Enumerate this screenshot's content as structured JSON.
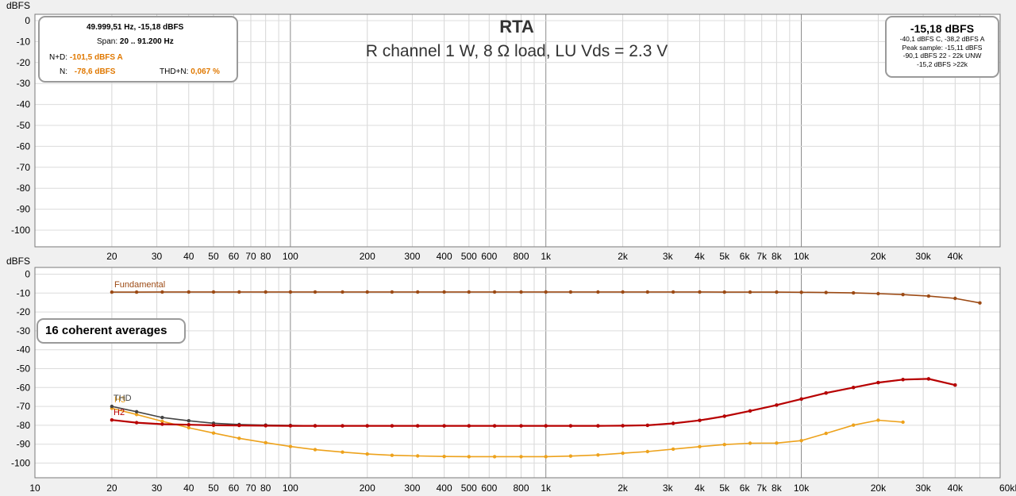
{
  "title": "RTA",
  "subtitle": "R channel 1 W, 8 Ω load, LU Vds = 2.3 V",
  "top_panel": {
    "y_unit": "dBFS",
    "y_ticks": [
      "0",
      "-10",
      "-20",
      "-30",
      "-40",
      "-50",
      "-60",
      "-70",
      "-80",
      "-90",
      "-100"
    ],
    "x_tick_labels": [
      "20",
      "30",
      "40",
      "50",
      "60",
      "70",
      "80",
      "100",
      "200",
      "300",
      "400",
      "500",
      "600",
      "800",
      "1k",
      "2k",
      "3k",
      "4k",
      "5k",
      "6k",
      "7k",
      "8k",
      "10k",
      "20k",
      "30k",
      "40k"
    ]
  },
  "info_box": {
    "cursor": "49.999,51 Hz, -15,18 dBFS",
    "span_label": "Span:",
    "span_value": "20 .. 91.200 Hz",
    "nd_label": "N+D:",
    "nd_value": "-101,5 dBFS A",
    "n_label": "N:",
    "n_value": "-78,6 dBFS",
    "thdn_label": "THD+N:",
    "thdn_value": "0,067 %"
  },
  "level_box": {
    "level": "-15,18 dBFS",
    "lines": [
      "-40,1 dBFS C, -38,2 dBFS A",
      "Peak sample: -15,11 dBFS",
      "-90,1 dBFS 22 - 22k UNW",
      "-15,2 dBFS >22k"
    ]
  },
  "bottom_panel": {
    "y_unit": "dBFS",
    "y_ticks": [
      "0",
      "-10",
      "-20",
      "-30",
      "-40",
      "-50",
      "-60",
      "-70",
      "-80",
      "-90",
      "-100"
    ],
    "x_tick_labels": [
      "10",
      "20",
      "30",
      "40",
      "50",
      "60",
      "70",
      "80",
      "100",
      "200",
      "300",
      "400",
      "500",
      "600",
      "800",
      "1k",
      "2k",
      "3k",
      "4k",
      "5k",
      "6k",
      "7k",
      "8k",
      "10k",
      "20k",
      "30k",
      "40k",
      "60kHz"
    ],
    "averages_label": "16 coherent averages"
  },
  "colors": {
    "fundamental": "#9c4a14",
    "thd": "#444444",
    "h2": "#b80000",
    "h3": "#eda21c"
  },
  "chart_data": {
    "type": "line",
    "xlabel": "",
    "ylabel": "dBFS",
    "x_scale": "log",
    "xlim": [
      10,
      60000
    ],
    "ylim": [
      -110,
      0
    ],
    "x": [
      20,
      25,
      31.5,
      40,
      50,
      63,
      80,
      100,
      125,
      160,
      200,
      250,
      315,
      400,
      500,
      630,
      800,
      1000,
      1250,
      1600,
      2000,
      2500,
      3150,
      4000,
      5000,
      6300,
      8000,
      10000,
      12500,
      16000,
      20000,
      25000,
      31500,
      40000,
      50000
    ],
    "series": [
      {
        "name": "Fundamental",
        "values": [
          -9.5,
          -9.5,
          -9.4,
          -9.4,
          -9.4,
          -9.4,
          -9.4,
          -9.4,
          -9.4,
          -9.4,
          -9.4,
          -9.4,
          -9.4,
          -9.4,
          -9.4,
          -9.4,
          -9.4,
          -9.4,
          -9.4,
          -9.4,
          -9.4,
          -9.4,
          -9.4,
          -9.4,
          -9.5,
          -9.5,
          -9.5,
          -9.6,
          -9.7,
          -9.9,
          -10.3,
          -10.8,
          -11.6,
          -12.8,
          -15.2
        ]
      },
      {
        "name": "THD",
        "values": [
          -70,
          -72.8,
          -75.9,
          -77.6,
          -78.9,
          -79.6,
          -79.9,
          -80.1,
          -80.2,
          -80.3,
          -80.3,
          -80.3,
          -80.3,
          -80.3,
          -80.3,
          -80.3,
          -80.3,
          -80.3,
          -80.3,
          -80.3,
          -80.2,
          -80.0,
          -79.0,
          -77.4,
          -75.2,
          -72.4,
          -69.3,
          -66.1,
          -62.9,
          -60.0,
          -57.4,
          -55.8,
          -55.4,
          -58.7,
          null
        ]
      },
      {
        "name": "H2",
        "values": [
          -77.2,
          -78.6,
          -79.4,
          -79.7,
          -80.0,
          -80.1,
          -80.2,
          -80.3,
          -80.3,
          -80.3,
          -80.3,
          -80.3,
          -80.3,
          -80.3,
          -80.3,
          -80.3,
          -80.3,
          -80.3,
          -80.3,
          -80.3,
          -80.2,
          -80.0,
          -79.0,
          -77.4,
          -75.2,
          -72.4,
          -69.3,
          -66.1,
          -62.9,
          -60.0,
          -57.4,
          -55.8,
          -55.4,
          -58.7,
          null
        ]
      },
      {
        "name": "H3",
        "values": [
          -71,
          -74.3,
          -77.9,
          -81.3,
          -84.1,
          -86.9,
          -89.2,
          -91.2,
          -92.9,
          -94.2,
          -95.2,
          -95.9,
          -96.2,
          -96.5,
          -96.6,
          -96.6,
          -96.6,
          -96.6,
          -96.3,
          -95.7,
          -94.8,
          -93.9,
          -92.6,
          -91.3,
          -90.2,
          -89.5,
          -89.4,
          -88.1,
          -84.3,
          -79.9,
          -77.3,
          -78.3,
          null,
          null,
          null
        ]
      }
    ]
  }
}
